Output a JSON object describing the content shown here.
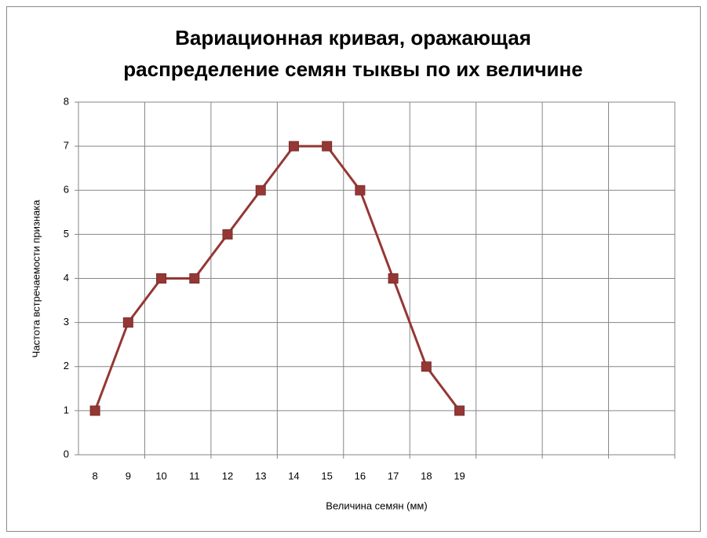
{
  "chart_data": {
    "type": "line",
    "title": [
      "Вариационная кривая, оражающая",
      "распределение семян тыквы по их величине"
    ],
    "x_label": "Величина семян (мм)",
    "y_label": "Частота встречаемости признака",
    "categories": [
      "8",
      "9",
      "10",
      "11",
      "12",
      "13",
      "14",
      "15",
      "16",
      "17",
      "18",
      "19",
      null,
      null,
      null,
      null,
      null,
      null
    ],
    "series": [
      {
        "name": "Частота",
        "color": "#953735",
        "values": [
          1,
          3,
          4,
          4,
          5,
          6,
          7,
          7,
          6,
          4,
          2,
          1,
          null,
          null,
          null,
          null,
          null,
          null
        ]
      }
    ],
    "ylim": [
      0,
      8
    ],
    "yticks": [
      0,
      1,
      2,
      3,
      4,
      5,
      6,
      7,
      8
    ],
    "grid": true
  }
}
